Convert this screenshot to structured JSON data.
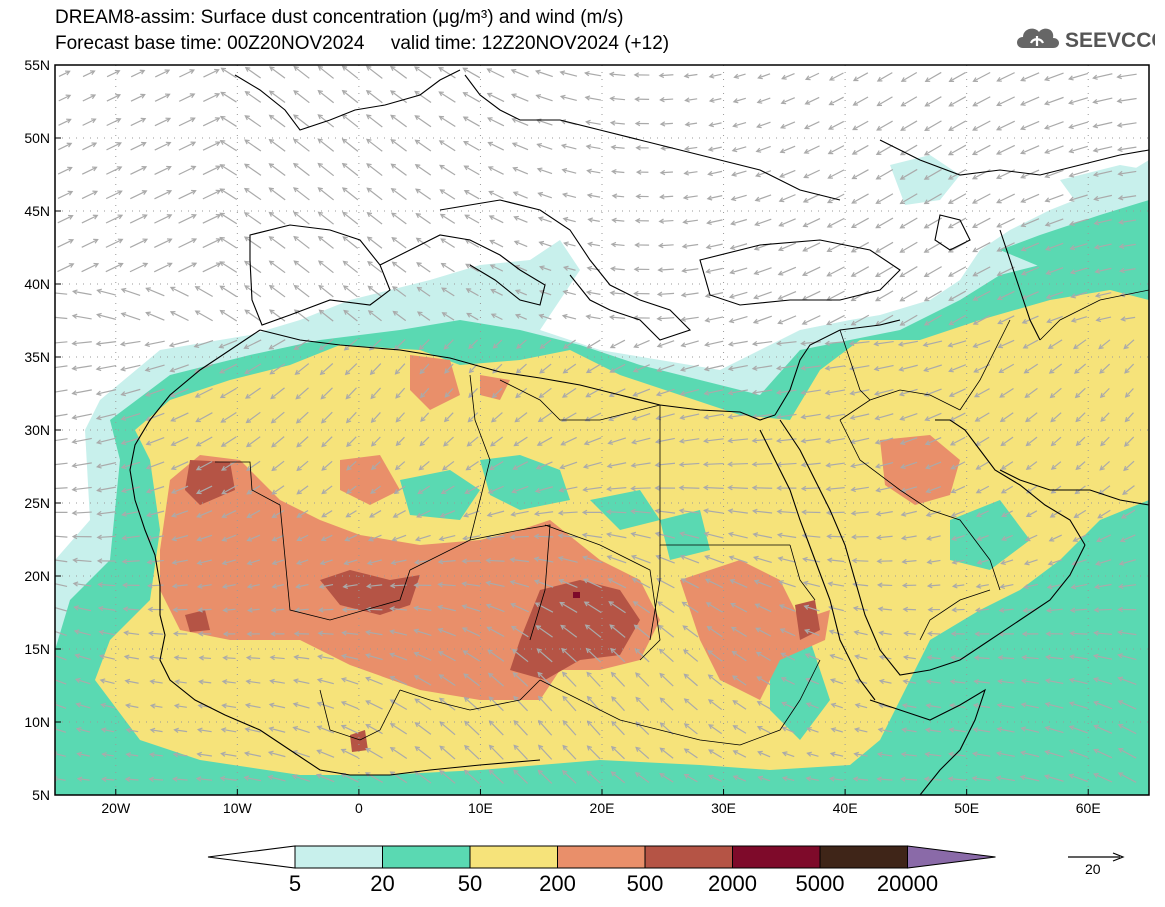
{
  "title_line1": "DREAM8-assim: Surface dust concentration (μg/m³) and wind (m/s)",
  "title_line2": "Forecast base time: 00Z20NOV2024     valid time: 12Z20NOV2024 (+12)",
  "logo_text": "SEEVCCC",
  "lat_labels": [
    "55N",
    "50N",
    "45N",
    "40N",
    "35N",
    "30N",
    "25N",
    "20N",
    "15N",
    "10N",
    "5N"
  ],
  "lon_labels": [
    "20W",
    "10W",
    "0",
    "10E",
    "20E",
    "30E",
    "40E",
    "50E",
    "60E"
  ],
  "colorbar": {
    "levels": [
      "5",
      "20",
      "50",
      "200",
      "500",
      "2000",
      "5000",
      "20000"
    ],
    "colors": [
      "#c8f0ec",
      "#5ad9b2",
      "#f6e37a",
      "#e98f6a",
      "#b55445",
      "#7e0a2a",
      "#3f2518",
      "#8a6aa8"
    ]
  },
  "wind_reference": "20",
  "colors": {
    "land_line": "#000000",
    "arrow": "#aaaaaa",
    "grid": "#9a9a9a"
  }
}
